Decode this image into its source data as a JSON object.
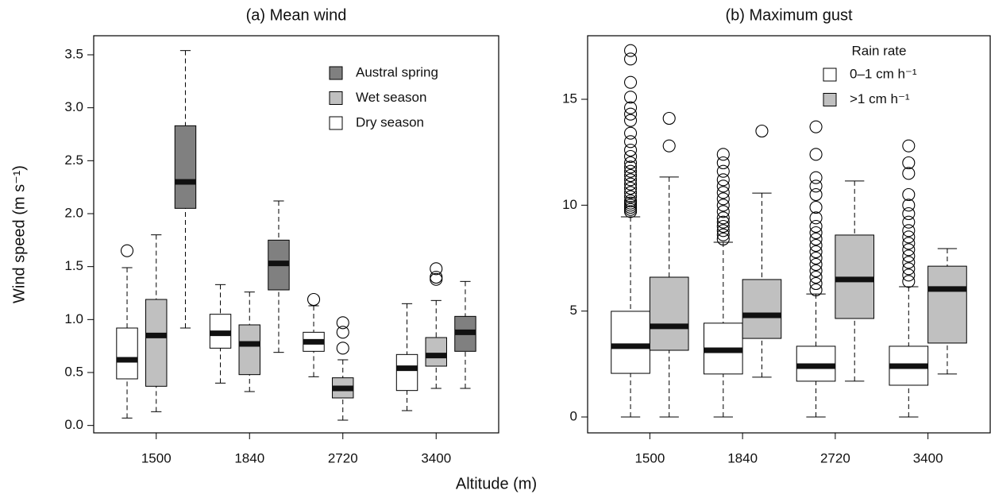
{
  "x_axis_label": "Altitude (m)",
  "chart_data": [
    {
      "type": "box",
      "title": "(a) Mean wind",
      "ylabel": "Wind speed (m s⁻¹)",
      "categories": [
        "1500",
        "1840",
        "2720",
        "3400"
      ],
      "ylim": [
        -0.07,
        3.68
      ],
      "yticks": [
        {
          "value": 0,
          "label": "0.0"
        },
        0.5,
        {
          "value": 1,
          "label": "1.0"
        },
        1.5,
        {
          "value": 2,
          "label": "2.0"
        },
        2.5,
        {
          "value": 3,
          "label": "3.0"
        },
        3.5
      ],
      "legend": "upper right",
      "legend_reversed": true,
      "series": [
        {
          "name": "Dry season",
          "color": "#ffffff",
          "boxes": [
            {
              "whislo": 0.07,
              "q1": 0.44,
              "med": 0.62,
              "q3": 0.92,
              "whishi": 1.49,
              "fliers": [
                1.65
              ]
            },
            {
              "whislo": 0.4,
              "q1": 0.73,
              "med": 0.87,
              "q3": 1.05,
              "whishi": 1.33,
              "fliers": []
            },
            {
              "whislo": 0.46,
              "q1": 0.7,
              "med": 0.79,
              "q3": 0.88,
              "whishi": 1.13,
              "fliers": [
                1.19
              ]
            },
            {
              "whislo": 0.14,
              "q1": 0.33,
              "med": 0.54,
              "q3": 0.67,
              "whishi": 1.15,
              "fliers": []
            }
          ]
        },
        {
          "name": "Wet season",
          "color": "#c0c0c0",
          "boxes": [
            {
              "whislo": 0.13,
              "q1": 0.37,
              "med": 0.85,
              "q3": 1.19,
              "whishi": 1.8,
              "fliers": []
            },
            {
              "whislo": 0.32,
              "q1": 0.48,
              "med": 0.77,
              "q3": 0.95,
              "whishi": 1.26,
              "fliers": []
            },
            {
              "whislo": 0.05,
              "q1": 0.26,
              "med": 0.35,
              "q3": 0.45,
              "whishi": 0.62,
              "fliers": [
                0.97,
                0.88,
                0.73
              ]
            },
            {
              "whislo": 0.35,
              "q1": 0.56,
              "med": 0.66,
              "q3": 0.83,
              "whishi": 1.18,
              "fliers": [
                1.48,
                1.4,
                1.38
              ]
            }
          ]
        },
        {
          "name": "Austral spring",
          "color": "#808080",
          "boxes": [
            {
              "whislo": 0.92,
              "q1": 2.05,
              "med": 2.3,
              "q3": 2.83,
              "whishi": 3.54,
              "fliers": []
            },
            {
              "whislo": 0.69,
              "q1": 1.28,
              "med": 1.53,
              "q3": 1.75,
              "whishi": 2.12,
              "fliers": []
            },
            null,
            {
              "whislo": 0.35,
              "q1": 0.7,
              "med": 0.88,
              "q3": 1.03,
              "whishi": 1.36,
              "fliers": []
            }
          ]
        }
      ]
    },
    {
      "type": "box",
      "title": "(b) Maximum gust",
      "categories": [
        "1500",
        "1840",
        "2720",
        "3400"
      ],
      "ylim": [
        -0.75,
        18.0
      ],
      "yticks": [
        0,
        5,
        10,
        15
      ],
      "legend": "upper right",
      "legend_title": "Rain rate",
      "series": [
        {
          "name": "0–1 cm h⁻¹",
          "color": "#ffffff",
          "boxes": [
            {
              "whislo": 0,
              "q1": 2.06,
              "med": 3.34,
              "q3": 4.99,
              "whishi": 9.45,
              "fliers": [
                9.7,
                9.8,
                9.9,
                10.0,
                10.1,
                10.2,
                10.4,
                10.6,
                10.8,
                11.0,
                11.2,
                11.4,
                11.6,
                11.8,
                12.0,
                12.3,
                12.6,
                13.0,
                13.4,
                14.0,
                14.3,
                14.6,
                15.1,
                15.8,
                16.9,
                17.3
              ]
            },
            {
              "whislo": 0,
              "q1": 2.03,
              "med": 3.15,
              "q3": 4.43,
              "whishi": 8.25,
              "fliers": [
                8.4,
                8.6,
                8.8,
                9.0,
                9.2,
                9.4,
                9.7,
                10.0,
                10.3,
                10.6,
                10.9,
                11.2,
                11.6,
                12.0,
                12.4
              ]
            },
            {
              "whislo": 0,
              "q1": 1.69,
              "med": 2.4,
              "q3": 3.34,
              "whishi": 5.81,
              "fliers": [
                6.0,
                6.3,
                6.6,
                6.9,
                7.2,
                7.5,
                7.8,
                8.1,
                8.4,
                8.7,
                9.0,
                9.4,
                9.9,
                10.5,
                10.9,
                11.3,
                12.4,
                13.7
              ]
            },
            {
              "whislo": 0,
              "q1": 1.5,
              "med": 2.4,
              "q3": 3.34,
              "whishi": 6.15,
              "fliers": [
                6.4,
                6.7,
                7.0,
                7.3,
                7.6,
                7.9,
                8.2,
                8.5,
                8.8,
                9.2,
                9.6,
                10.0,
                10.5,
                11.5,
                12.0,
                12.8
              ]
            }
          ]
        },
        {
          "name": ">1 cm h⁻¹",
          "color": "#c0c0c0",
          "boxes": [
            {
              "whislo": 0,
              "q1": 3.15,
              "med": 4.28,
              "q3": 6.6,
              "whishi": 11.33,
              "fliers": [
                12.8,
                14.1
              ]
            },
            {
              "whislo": 1.88,
              "q1": 3.71,
              "med": 4.8,
              "q3": 6.49,
              "whishi": 10.57,
              "fliers": [
                13.5
              ]
            },
            {
              "whislo": 1.69,
              "q1": 4.65,
              "med": 6.49,
              "q3": 8.59,
              "whishi": 11.14,
              "fliers": []
            },
            {
              "whislo": 2.03,
              "q1": 3.49,
              "med": 6.04,
              "q3": 7.12,
              "whishi": 7.95,
              "fliers": []
            }
          ]
        }
      ]
    }
  ]
}
